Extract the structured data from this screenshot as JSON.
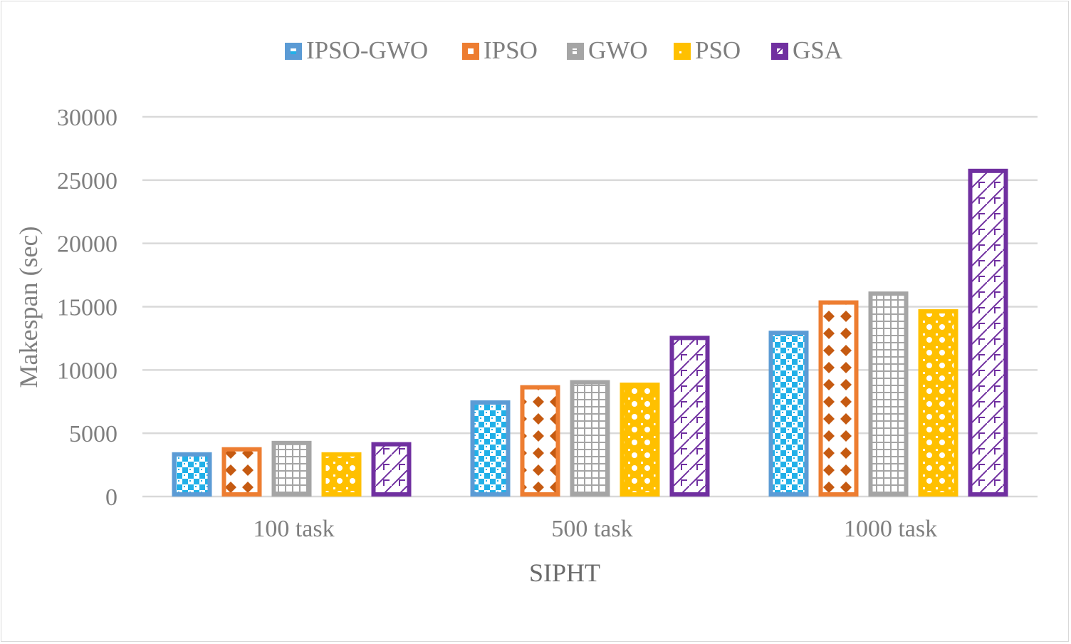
{
  "chart_data": {
    "type": "bar",
    "title": "",
    "xlabel": "SIPHT",
    "ylabel": "Makespan (sec)",
    "ylim": [
      0,
      30000
    ],
    "yticks": [
      0,
      5000,
      10000,
      15000,
      20000,
      25000,
      30000
    ],
    "ytick_labels": [
      "0",
      "5000",
      "10000",
      "15000",
      "20000",
      "25000",
      "30000"
    ],
    "grid": true,
    "legend_position": "top-center",
    "categories": [
      "100 task",
      "500 task",
      "1000 task"
    ],
    "series": [
      {
        "name": "IPSO-GWO",
        "color": "#5b9bd5",
        "fill": "#21b0e8",
        "values": [
          3500,
          7600,
          13100
        ]
      },
      {
        "name": "IPSO",
        "color": "#ed7d31",
        "fill": "#c55a11",
        "values": [
          3900,
          8800,
          15500
        ]
      },
      {
        "name": "GWO",
        "color": "#a5a5a5",
        "fill": "#a5a5a5",
        "values": [
          4400,
          9200,
          16200
        ]
      },
      {
        "name": "PSO",
        "color": "#ffc000",
        "fill": "#ffc000",
        "values": [
          3500,
          9000,
          14800
        ]
      },
      {
        "name": "GSA",
        "color": "#7030a0",
        "fill": "#7030a0",
        "values": [
          4300,
          12700,
          25900
        ]
      }
    ]
  }
}
